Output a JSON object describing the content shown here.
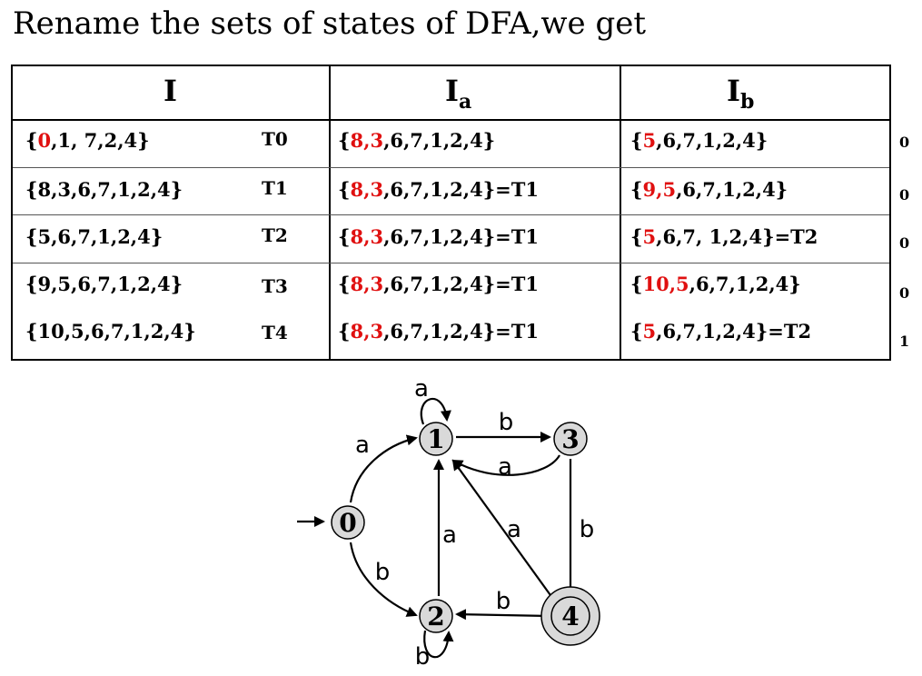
{
  "title": "Rename the sets of states of DFA,we get",
  "table": {
    "headers": {
      "i": "I",
      "ia_base": "I",
      "ia_sub": "a",
      "ib_base": "I",
      "ib_sub": "b"
    },
    "rows": [
      {
        "set_parts": [
          {
            "text": "{",
            "red": false
          },
          {
            "text": "0",
            "red": true
          },
          {
            "text": ",1, 7,2,4}",
            "red": false
          }
        ],
        "tag": "T0",
        "ia_parts": [
          {
            "text": "{",
            "red": false
          },
          {
            "text": "8,3",
            "red": true
          },
          {
            "text": ",6,7,1,2,4}",
            "red": false
          }
        ],
        "ib_parts": [
          {
            "text": "{",
            "red": false
          },
          {
            "text": "5",
            "red": true
          },
          {
            "text": ",6,7,1,2,4}",
            "red": false
          }
        ],
        "output": "0"
      },
      {
        "set_parts": [
          {
            "text": "{8,3,6,7,1,2,4}",
            "red": false
          }
        ],
        "tag": "T1",
        "ia_parts": [
          {
            "text": "{",
            "red": false
          },
          {
            "text": "8,3",
            "red": true
          },
          {
            "text": ",6,7,1,2,4}=T1",
            "red": false
          }
        ],
        "ib_parts": [
          {
            "text": "{",
            "red": false
          },
          {
            "text": "9,5",
            "red": true
          },
          {
            "text": ",6,7,1,2,4}",
            "red": false
          }
        ],
        "output": "0"
      },
      {
        "set_parts": [
          {
            "text": "{5,6,7,1,2,4}",
            "red": false
          }
        ],
        "tag": "T2",
        "ia_parts": [
          {
            "text": "{",
            "red": false
          },
          {
            "text": "8,3",
            "red": true
          },
          {
            "text": ",6,7,1,2,4}=T1",
            "red": false
          }
        ],
        "ib_parts": [
          {
            "text": "{",
            "red": false
          },
          {
            "text": "5",
            "red": true
          },
          {
            "text": ",6,7, 1,2,4}=T2",
            "red": false
          }
        ],
        "output": "0"
      },
      {
        "set_parts": [
          {
            "text": "{9,5,6,7,1,2,4}",
            "red": false
          }
        ],
        "tag": "T3",
        "ia_parts": [
          {
            "text": "{",
            "red": false
          },
          {
            "text": "8,3",
            "red": true
          },
          {
            "text": ",6,7,1,2,4}=T1",
            "red": false
          }
        ],
        "ib_parts": [
          {
            "text": "{",
            "red": false
          },
          {
            "text": "10,5",
            "red": true
          },
          {
            "text": ",6,7,1,2,4}",
            "red": false
          }
        ],
        "output": "0"
      },
      {
        "set_parts": [
          {
            "text": "{10,5,6,7,1,2,4}",
            "red": false
          }
        ],
        "tag": "T4",
        "ia_parts": [
          {
            "text": "{",
            "red": false
          },
          {
            "text": "8,3",
            "red": true
          },
          {
            "text": ",6,7,1,2,4}=T1",
            "red": false
          }
        ],
        "ib_parts": [
          {
            "text": "{",
            "red": false
          },
          {
            "text": "5",
            "red": true
          },
          {
            "text": ",6,7,1,2,4}=T2",
            "red": false
          }
        ],
        "output": "1"
      }
    ]
  },
  "diagram": {
    "nodes": [
      {
        "id": "0",
        "label": "0",
        "start": true,
        "accepting": false
      },
      {
        "id": "1",
        "label": "1",
        "start": false,
        "accepting": false
      },
      {
        "id": "2",
        "label": "2",
        "start": false,
        "accepting": false
      },
      {
        "id": "3",
        "label": "3",
        "start": false,
        "accepting": false
      },
      {
        "id": "4",
        "label": "4",
        "start": false,
        "accepting": true
      }
    ],
    "edges": [
      {
        "from": "0",
        "to": "1",
        "label": "a"
      },
      {
        "from": "0",
        "to": "2",
        "label": "b"
      },
      {
        "from": "1",
        "to": "1",
        "label": "a"
      },
      {
        "from": "1",
        "to": "3",
        "label": "b"
      },
      {
        "from": "3",
        "to": "1",
        "label": "a"
      },
      {
        "from": "3",
        "to": "4",
        "label": "b"
      },
      {
        "from": "2",
        "to": "1",
        "label": "a"
      },
      {
        "from": "2",
        "to": "2",
        "label": "b"
      },
      {
        "from": "4",
        "to": "1",
        "label": "a"
      },
      {
        "from": "4",
        "to": "2",
        "label": "b"
      }
    ],
    "node_fill": "#d9d9d9"
  },
  "colors": {
    "highlight": "#e01010"
  }
}
